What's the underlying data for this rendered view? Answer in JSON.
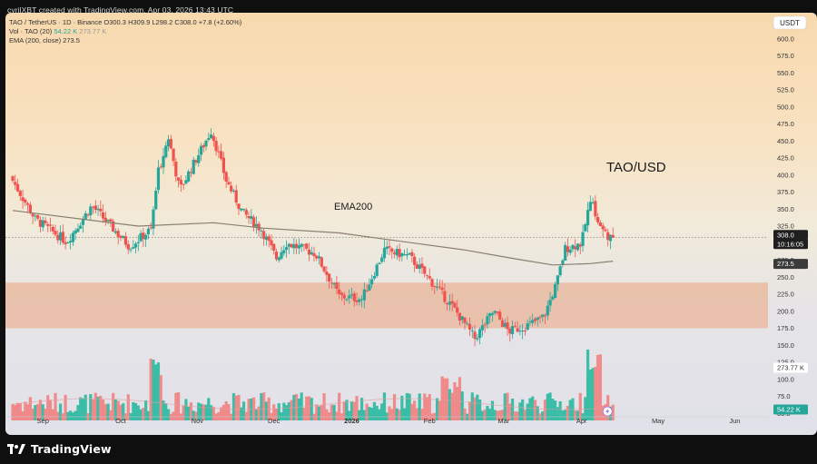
{
  "header_credit": "cyrilXBT created with TradingView.com, Apr 03, 2026 13:43 UTC",
  "legend": {
    "line1_prefix": "TAO / TetherUS · 1D · Binance",
    "o_label": "O",
    "o_value": "300.3",
    "h_label": "H",
    "h_value": "309.9",
    "l_label": "L",
    "l_value": "298.2",
    "c_label": "C",
    "c_value": "308.0",
    "change": "+7.8 (+2.60%)",
    "vol_label": "Vol · TAO (20)",
    "vol_value": "54.22 K",
    "vol_ma": "273.77 K",
    "ema_label": "EMA (200, close)",
    "ema_value": "273.5"
  },
  "currency_button": "USDT",
  "footer": {
    "brand": "TradingView"
  },
  "annotations": {
    "pair_title": "TAO/USD",
    "ema_label": "EMA200"
  },
  "badges": {
    "price": "308.0",
    "countdown": "10:16:05",
    "ema": "273.5",
    "vol_ma": "273.77 K",
    "vol": "54.22 K"
  },
  "colors": {
    "up": "#26a69a",
    "down": "#ef5350",
    "ema": "#8a7e6f",
    "zone": "#eab59a",
    "volume_up": "#2ab9a1",
    "volume_down": "#f28282",
    "price_badge": "#1e1e1e",
    "ema_badge": "#3a3a3a",
    "vol_badge": "#26a69a"
  },
  "chart_data": {
    "type": "candlestick",
    "title": "TAO / TetherUS · 1D · Binance",
    "y_ticks": [
      50.0,
      75.0,
      100.0,
      125.0,
      150.0,
      175.0,
      200.0,
      225.0,
      250.0,
      275.0,
      300.0,
      325.0,
      350.0,
      375.0,
      400.0,
      425.0,
      450.0,
      475.0,
      500.0,
      525.0,
      550.0,
      575.0,
      600.0
    ],
    "y_tick_labels": [
      "50.0",
      "75.0",
      "100.0",
      "125.0",
      "150.0",
      "175.0",
      "200.0",
      "225.0",
      "250.0",
      "275.0",
      "300.0",
      "325.0",
      "350.0",
      "375.0",
      "400.0",
      "425.0",
      "450.0",
      "475.0",
      "500.0",
      "525.0",
      "550.0",
      "575.0",
      "600.0"
    ],
    "ylim": [
      45,
      625
    ],
    "x_labels": [
      "Sep",
      "Oct",
      "Nov",
      "Dec",
      "2026",
      "Feb",
      "Mar",
      "Apr",
      "May",
      "Jun"
    ],
    "x_label_days": [
      24,
      86,
      147,
      208,
      270,
      332,
      391,
      453,
      514,
      575
    ],
    "x_range_days": [
      0,
      600
    ],
    "last_price": 308.0,
    "ema200_last": 273.5,
    "support_zone": [
      175,
      242
    ],
    "key_points": [
      {
        "day": 0,
        "price": 398
      },
      {
        "day": 20,
        "price": 335
      },
      {
        "day": 45,
        "price": 302
      },
      {
        "day": 65,
        "price": 355
      },
      {
        "day": 95,
        "price": 295
      },
      {
        "day": 112,
        "price": 320
      },
      {
        "day": 118,
        "price": 405
      },
      {
        "day": 126,
        "price": 455
      },
      {
        "day": 135,
        "price": 378
      },
      {
        "day": 160,
        "price": 465
      },
      {
        "day": 166,
        "price": 430
      },
      {
        "day": 172,
        "price": 392
      },
      {
        "day": 185,
        "price": 345
      },
      {
        "day": 200,
        "price": 320
      },
      {
        "day": 212,
        "price": 278
      },
      {
        "day": 220,
        "price": 300
      },
      {
        "day": 243,
        "price": 285
      },
      {
        "day": 262,
        "price": 222
      },
      {
        "day": 280,
        "price": 218
      },
      {
        "day": 298,
        "price": 290
      },
      {
        "day": 318,
        "price": 280
      },
      {
        "day": 338,
        "price": 238
      },
      {
        "day": 355,
        "price": 200
      },
      {
        "day": 370,
        "price": 160
      },
      {
        "day": 385,
        "price": 200
      },
      {
        "day": 397,
        "price": 170
      },
      {
        "day": 413,
        "price": 180
      },
      {
        "day": 425,
        "price": 192
      },
      {
        "day": 435,
        "price": 240
      },
      {
        "day": 442,
        "price": 292
      },
      {
        "day": 455,
        "price": 300
      },
      {
        "day": 462,
        "price": 365
      },
      {
        "day": 470,
        "price": 322
      },
      {
        "day": 478,
        "price": 308
      }
    ],
    "ema_points": [
      {
        "day": 0,
        "price": 348
      },
      {
        "day": 100,
        "price": 325
      },
      {
        "day": 160,
        "price": 330
      },
      {
        "day": 200,
        "price": 322
      },
      {
        "day": 260,
        "price": 315
      },
      {
        "day": 320,
        "price": 300
      },
      {
        "day": 360,
        "price": 290
      },
      {
        "day": 400,
        "price": 277
      },
      {
        "day": 430,
        "price": 268
      },
      {
        "day": 460,
        "price": 270
      },
      {
        "day": 478,
        "price": 273.5
      }
    ]
  }
}
